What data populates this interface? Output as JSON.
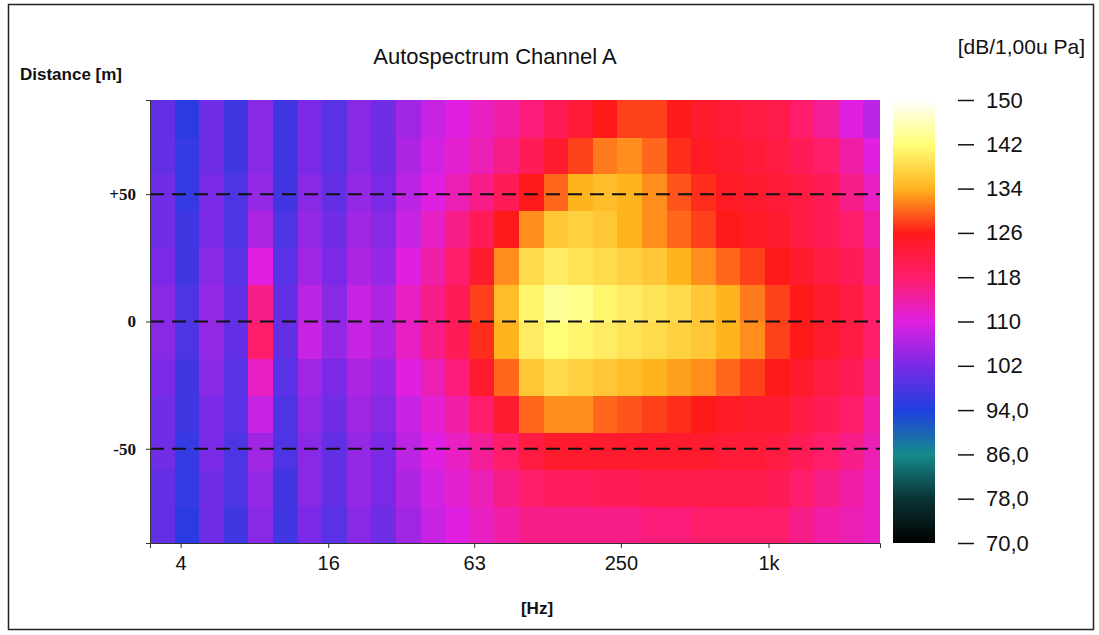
{
  "chart_data": {
    "type": "heatmap",
    "title": "Autospectrum Channel A",
    "x_label": "[Hz]",
    "y_label": "Distance [m]",
    "colorbar_label": "[dB/1,00u Pa]",
    "log": "x",
    "grid": true,
    "xlim": [
      3,
      2850
    ],
    "ylim": [
      -87,
      87
    ],
    "xticks": [
      4,
      16,
      63,
      250,
      {
        "value": 1000,
        "label": "1k"
      }
    ],
    "yticks": [
      {
        "value": 50,
        "label": "+50"
      },
      0,
      -50
    ],
    "x_bins": [
      3,
      3.78,
      4.76,
      6,
      7.56,
      9.52,
      12,
      15.1,
      19,
      24,
      30.2,
      38.1,
      48,
      60.5,
      76.2,
      96,
      121,
      152,
      192,
      242,
      305,
      384,
      484,
      610,
      768,
      968,
      1220,
      1537,
      1936,
      2439,
      2850
    ],
    "y_bins": [
      -87,
      -72.5,
      -58,
      -43.5,
      -29,
      -14.5,
      0,
      14.5,
      29,
      43.5,
      58,
      72.5,
      87
    ],
    "values": [
      [
        100,
        95,
        101,
        97,
        103,
        97,
        102,
        99,
        103,
        101,
        105,
        108,
        110,
        112,
        114,
        116,
        116,
        116,
        116,
        116,
        117,
        117,
        118,
        118,
        118,
        118,
        116,
        114,
        113,
        112
      ],
      [
        100,
        96,
        101,
        98,
        104,
        97,
        103,
        100,
        104,
        102,
        106,
        109,
        111,
        113,
        116,
        118,
        119,
        119,
        120,
        120,
        121,
        121,
        121,
        121,
        121,
        120,
        118,
        116,
        114,
        112
      ],
      [
        101,
        96,
        102,
        98,
        105,
        98,
        103,
        100,
        104,
        102,
        107,
        110,
        112,
        115,
        118,
        122,
        124,
        124,
        124,
        124,
        124,
        124,
        124,
        123,
        123,
        122,
        120,
        118,
        116,
        113
      ],
      [
        101,
        97,
        102,
        99,
        108,
        98,
        104,
        101,
        105,
        103,
        108,
        111,
        114,
        118,
        124,
        130,
        132,
        132,
        130,
        129,
        128,
        127,
        126,
        125,
        124,
        124,
        122,
        120,
        118,
        114
      ],
      [
        102,
        97,
        103,
        99,
        112,
        99,
        105,
        102,
        106,
        104,
        110,
        113,
        117,
        124,
        130,
        136,
        138,
        137,
        136,
        135,
        134,
        133,
        132,
        130,
        128,
        126,
        124,
        122,
        120,
        116
      ],
      [
        103,
        98,
        104,
        100,
        118,
        100,
        108,
        104,
        108,
        106,
        112,
        116,
        120,
        127,
        134,
        140,
        142,
        141,
        140,
        139,
        138,
        137,
        136,
        134,
        132,
        128,
        126,
        124,
        122,
        118
      ],
      [
        103,
        98,
        104,
        100,
        116,
        100,
        107,
        103,
        108,
        106,
        112,
        116,
        120,
        128,
        135,
        141,
        144,
        143,
        141,
        140,
        139,
        138,
        136,
        134,
        131,
        128,
        126,
        124,
        122,
        118
      ],
      [
        102,
        97,
        103,
        99,
        110,
        99,
        105,
        102,
        106,
        104,
        110,
        114,
        118,
        124,
        132,
        138,
        140,
        139,
        138,
        137,
        136,
        134,
        132,
        130,
        128,
        126,
        124,
        122,
        120,
        116
      ],
      [
        101,
        97,
        102,
        98,
        106,
        98,
        104,
        101,
        105,
        103,
        108,
        112,
        116,
        120,
        126,
        132,
        136,
        137,
        136,
        134,
        132,
        130,
        128,
        126,
        125,
        124,
        122,
        120,
        118,
        114
      ],
      [
        101,
        96,
        102,
        98,
        104,
        97,
        103,
        100,
        104,
        102,
        107,
        110,
        113,
        116,
        120,
        126,
        130,
        134,
        135,
        134,
        132,
        129,
        127,
        125,
        124,
        123,
        122,
        120,
        116,
        112
      ],
      [
        100,
        96,
        101,
        97,
        103,
        97,
        102,
        99,
        103,
        101,
        106,
        109,
        111,
        113,
        116,
        120,
        124,
        128,
        131,
        132,
        130,
        127,
        125,
        124,
        123,
        122,
        120,
        118,
        114,
        110
      ],
      [
        100,
        95,
        101,
        97,
        103,
        97,
        102,
        99,
        103,
        101,
        105,
        108,
        110,
        112,
        114,
        117,
        120,
        123,
        126,
        128,
        128,
        126,
        124,
        123,
        122,
        121,
        118,
        115,
        110,
        107
      ]
    ],
    "colorbar_range": [
      70,
      150
    ],
    "colorbar_ticks": [
      150,
      142,
      134,
      126,
      118,
      110,
      102,
      {
        "value": 94,
        "label": "94,0"
      },
      {
        "value": 86,
        "label": "86,0"
      },
      {
        "value": 78,
        "label": "78,0"
      },
      {
        "value": 70,
        "label": "70,0"
      }
    ]
  }
}
